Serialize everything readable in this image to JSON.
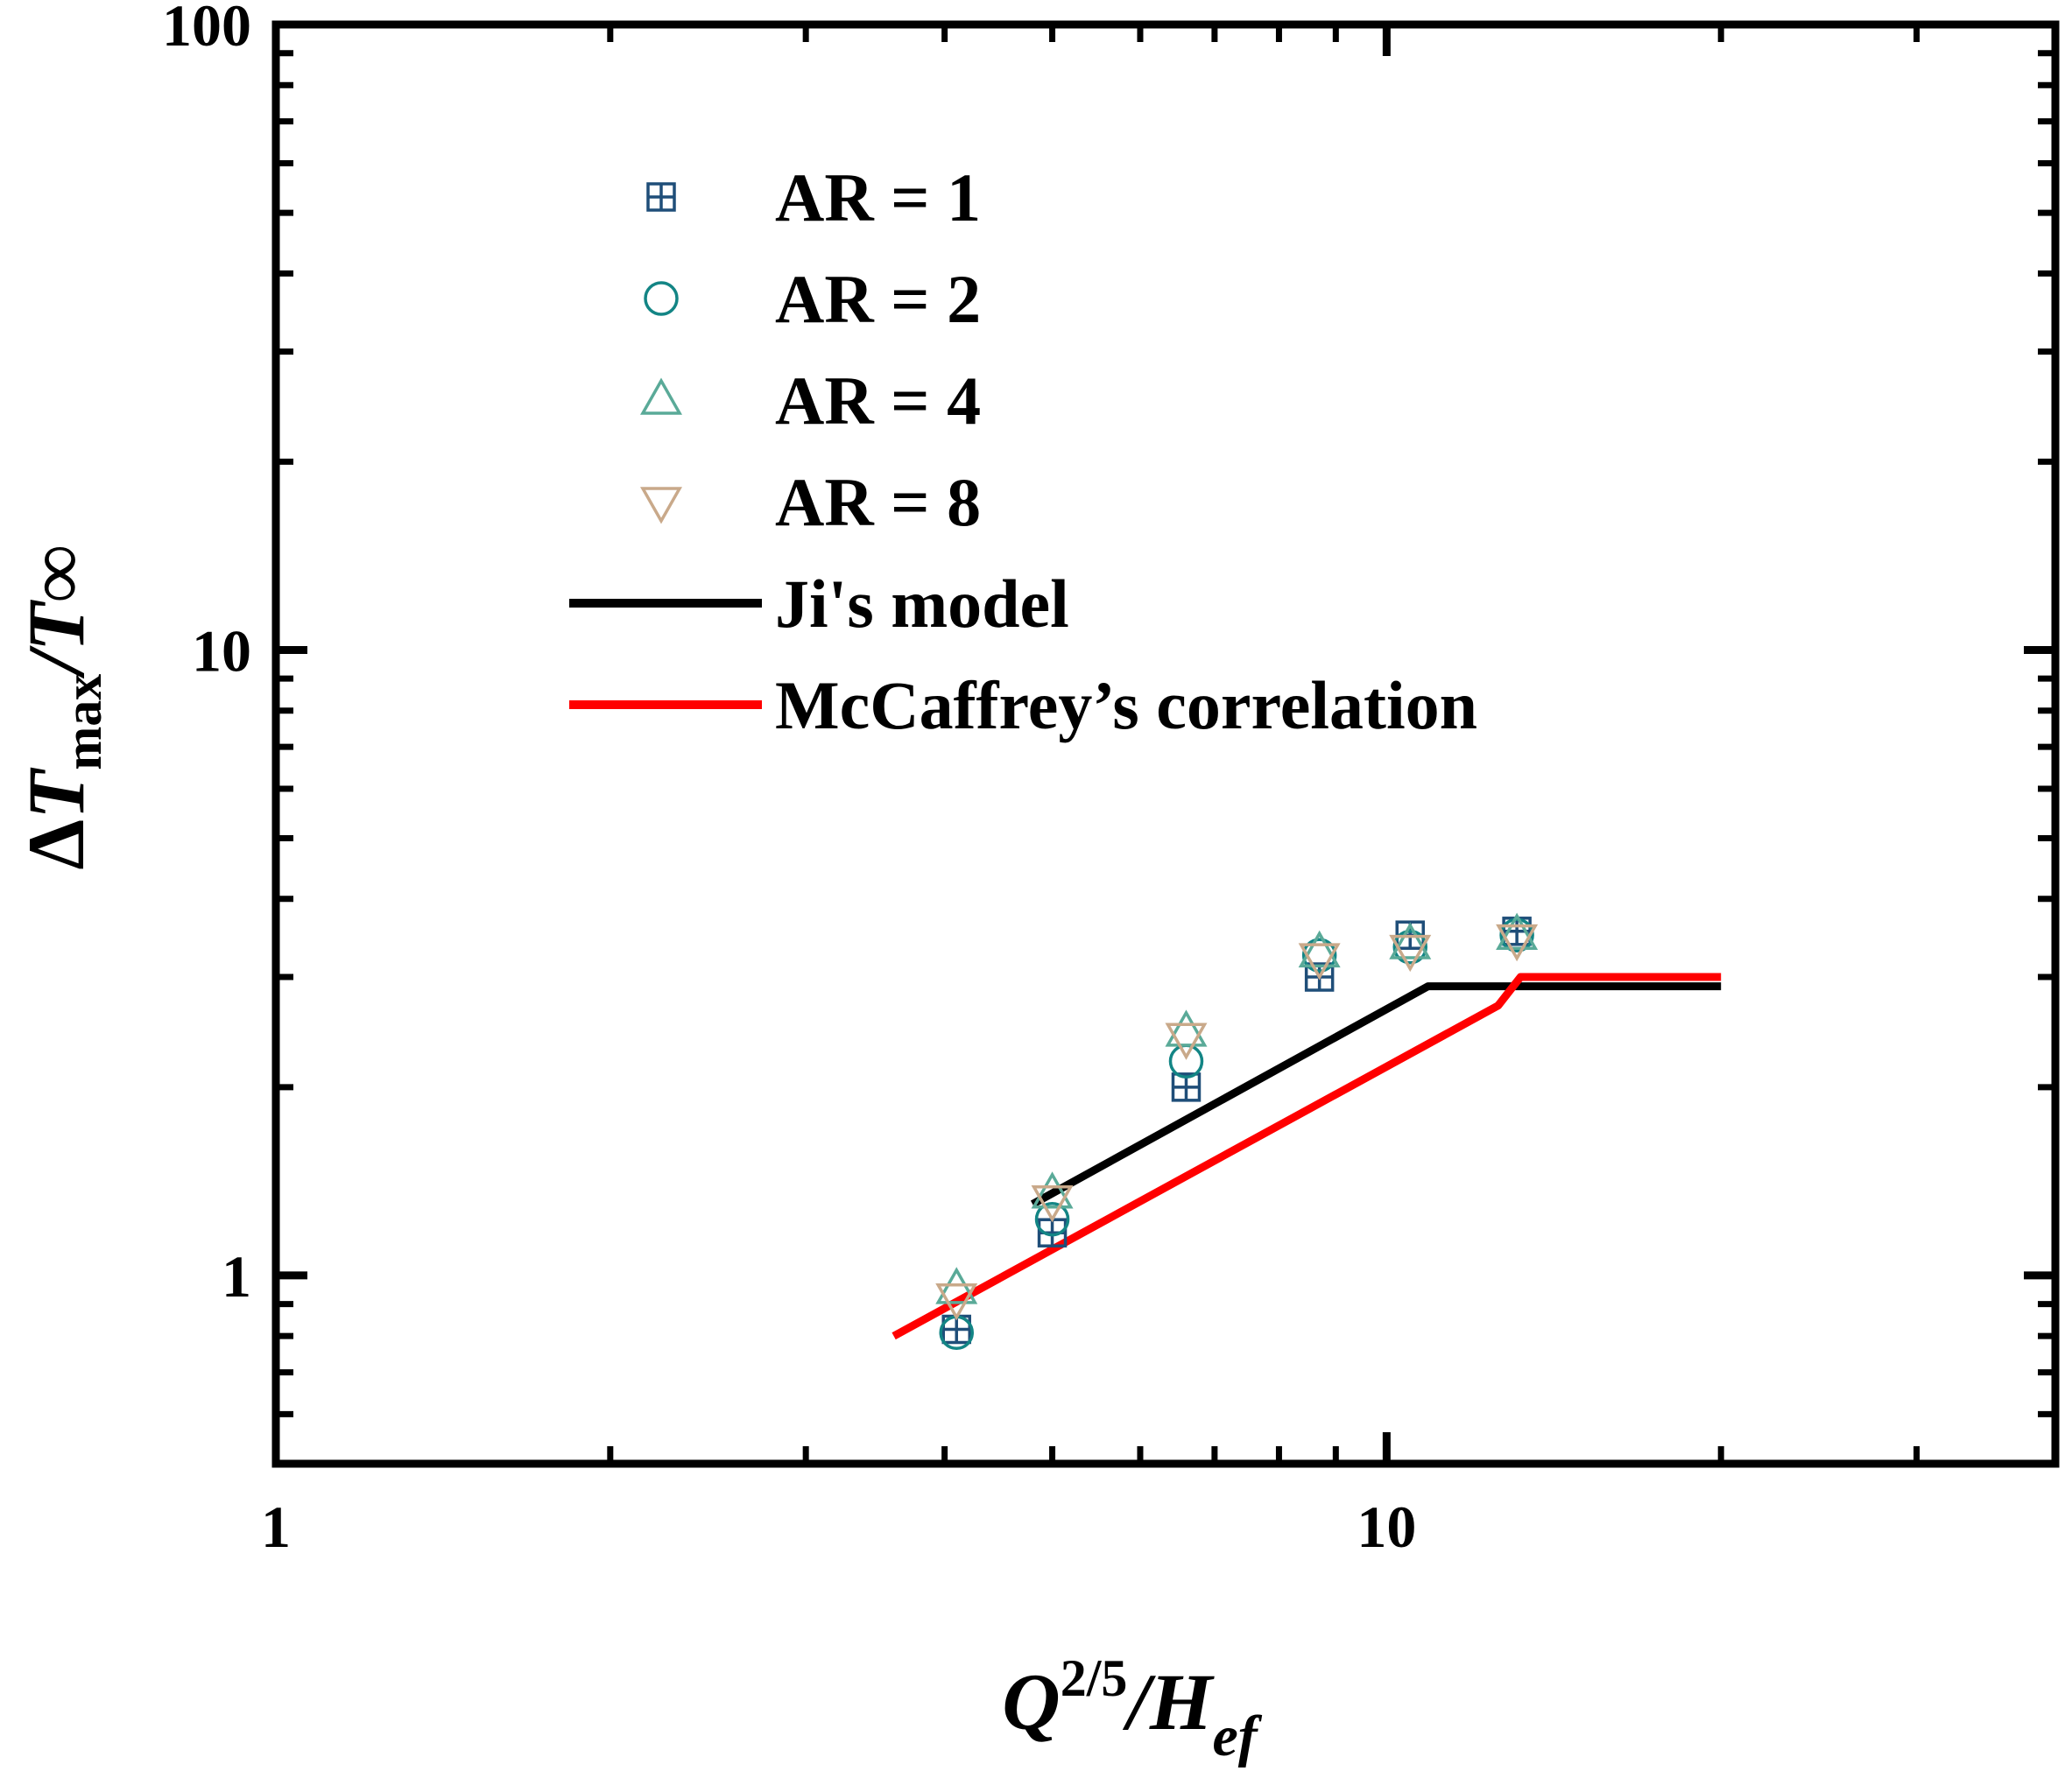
{
  "chart_data": {
    "type": "scatter",
    "x_scale": "log",
    "y_scale": "log",
    "xlim": [
      1,
      40
    ],
    "ylim": [
      0.5,
      100
    ],
    "xticks": [
      1,
      10
    ],
    "xtick_labels": [
      "1",
      "10"
    ],
    "yticks": [
      1,
      10,
      100
    ],
    "ytick_labels": [
      "1",
      "10",
      "100"
    ],
    "xlabel": {
      "base": "Q",
      "sup": "2/5",
      "mid": "/H",
      "sub": "ef"
    },
    "ylabel": {
      "pre": "Δ",
      "base": "T",
      "sub": "max",
      "mid": "/T",
      "tail": "∞"
    },
    "grid": false,
    "legend_position": "top-left",
    "series": [
      {
        "name": "AR = 1",
        "kind": "marker",
        "marker": "square-plus",
        "color": "#1f4e79",
        "points": [
          [
            4.1,
            0.82
          ],
          [
            5.0,
            1.17
          ],
          [
            6.6,
            2.0
          ],
          [
            8.7,
            3.0
          ],
          [
            10.5,
            3.5
          ],
          [
            13.1,
            3.55
          ]
        ]
      },
      {
        "name": "AR = 2",
        "kind": "marker",
        "marker": "circle",
        "color": "#138585",
        "points": [
          [
            4.1,
            0.81
          ],
          [
            5.0,
            1.23
          ],
          [
            6.6,
            2.2
          ],
          [
            8.7,
            3.25
          ],
          [
            10.5,
            3.35
          ],
          [
            13.1,
            3.5
          ]
        ]
      },
      {
        "name": "AR = 4",
        "kind": "marker",
        "marker": "triangle-up",
        "color": "#5aaa98",
        "points": [
          [
            4.1,
            0.95
          ],
          [
            5.0,
            1.35
          ],
          [
            6.6,
            2.45
          ],
          [
            8.7,
            3.28
          ],
          [
            10.5,
            3.38
          ],
          [
            13.1,
            3.5
          ]
        ]
      },
      {
        "name": "AR = 8",
        "kind": "marker",
        "marker": "triangle-down",
        "color": "#c9a98a",
        "points": [
          [
            4.1,
            0.92
          ],
          [
            5.0,
            1.32
          ],
          [
            6.6,
            2.4
          ],
          [
            8.7,
            3.22
          ],
          [
            10.5,
            3.32
          ],
          [
            13.1,
            3.45
          ]
        ]
      },
      {
        "name": "Ji's model",
        "kind": "line",
        "color": "#000000",
        "points": [
          [
            4.8,
            1.3
          ],
          [
            10.9,
            2.9
          ],
          [
            20.0,
            2.9
          ]
        ]
      },
      {
        "name": "McCaffrey’s correlation",
        "kind": "line",
        "color": "#ff0000",
        "points": [
          [
            3.6,
            0.8
          ],
          [
            12.6,
            2.7
          ],
          [
            13.2,
            3.0
          ],
          [
            20.0,
            3.0
          ]
        ]
      }
    ]
  }
}
